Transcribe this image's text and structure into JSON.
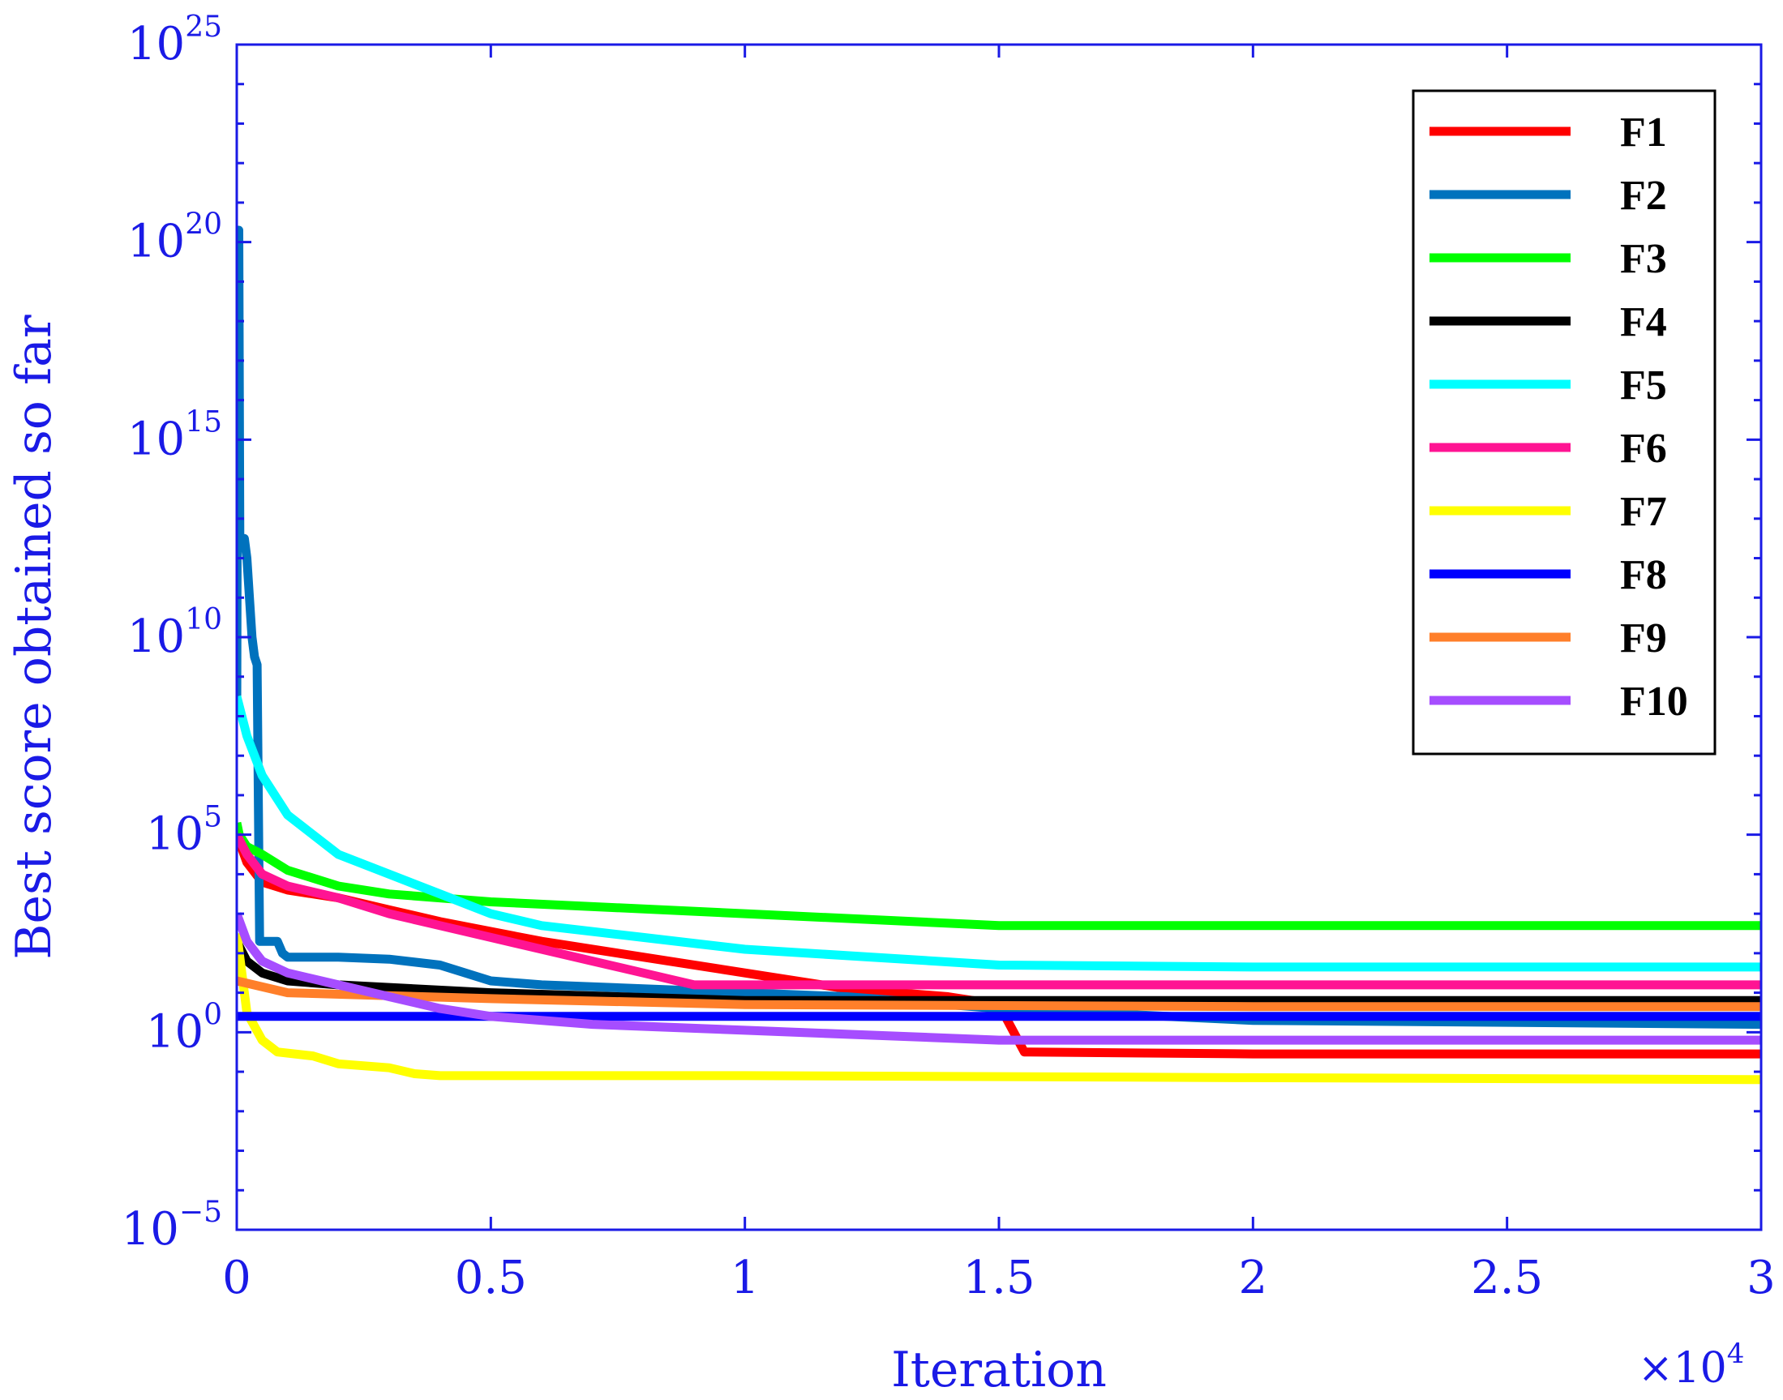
{
  "chart_data": {
    "type": "line",
    "title": "",
    "xlabel": "Iteration",
    "ylabel": "Best score obtained so far",
    "x_multiplier_label": {
      "base": "×10",
      "exp": "4"
    },
    "xlim": [
      0,
      3
    ],
    "ylim_log10": [
      -5,
      25
    ],
    "y_scale": "log",
    "grid": false,
    "legend_position": "top-right",
    "x_ticks": [
      {
        "value": 0,
        "label": "0"
      },
      {
        "value": 0.5,
        "label": "0.5"
      },
      {
        "value": 1,
        "label": "1"
      },
      {
        "value": 1.5,
        "label": "1.5"
      },
      {
        "value": 2,
        "label": "2"
      },
      {
        "value": 2.5,
        "label": "2.5"
      },
      {
        "value": 3,
        "label": "3"
      }
    ],
    "y_ticks": [
      {
        "value": -5,
        "base": "10",
        "exp": "−5"
      },
      {
        "value": 0,
        "base": "10",
        "exp": "0"
      },
      {
        "value": 5,
        "base": "10",
        "exp": "5"
      },
      {
        "value": 10,
        "base": "10",
        "exp": "10"
      },
      {
        "value": 15,
        "base": "10",
        "exp": "15"
      },
      {
        "value": 20,
        "base": "10",
        "exp": "20"
      },
      {
        "value": 25,
        "base": "10",
        "exp": "25"
      }
    ],
    "series": [
      {
        "name": "F1",
        "color": "#ff0000",
        "x": [
          0,
          0.02,
          0.05,
          0.1,
          0.2,
          0.3,
          0.4,
          0.6,
          0.8,
          1.0,
          1.2,
          1.4,
          1.5,
          1.55,
          2.0,
          3.0
        ],
        "log10_y": [
          5.0,
          4.3,
          3.8,
          3.6,
          3.4,
          3.1,
          2.8,
          2.3,
          1.9,
          1.5,
          1.1,
          0.9,
          0.7,
          -0.5,
          -0.55,
          -0.55
        ]
      },
      {
        "name": "F2",
        "color": "#0072bd",
        "x": [
          0,
          0.002,
          0.004,
          0.006,
          0.01,
          0.015,
          0.02,
          0.03,
          0.035,
          0.04,
          0.045,
          0.05,
          0.08,
          0.09,
          0.1,
          0.2,
          0.3,
          0.4,
          0.5,
          0.6,
          0.8,
          1.0,
          1.2,
          1.5,
          2.0,
          3.0
        ],
        "log10_y": [
          8.0,
          20.3,
          20.3,
          12.5,
          12.5,
          12.5,
          12.0,
          10.0,
          9.5,
          9.3,
          2.3,
          2.3,
          2.3,
          2.0,
          1.9,
          1.9,
          1.85,
          1.7,
          1.3,
          1.2,
          1.1,
          1.0,
          0.9,
          0.6,
          0.3,
          0.2
        ]
      },
      {
        "name": "F3",
        "color": "#00ff00",
        "x": [
          0,
          0.005,
          0.02,
          0.05,
          0.1,
          0.2,
          0.3,
          0.5,
          1.0,
          1.5,
          2.0,
          3.0
        ],
        "log10_y": [
          5.3,
          5.0,
          4.7,
          4.5,
          4.1,
          3.7,
          3.5,
          3.3,
          3.0,
          2.7,
          2.7,
          2.7
        ]
      },
      {
        "name": "F4",
        "color": "#000000",
        "x": [
          0,
          0.02,
          0.05,
          0.1,
          0.2,
          0.5,
          1.0,
          2.0,
          3.0
        ],
        "log10_y": [
          2.3,
          1.8,
          1.5,
          1.3,
          1.2,
          1.0,
          0.8,
          0.8,
          0.8
        ]
      },
      {
        "name": "F5",
        "color": "#00ffff",
        "x": [
          0,
          0.02,
          0.05,
          0.1,
          0.15,
          0.2,
          0.3,
          0.4,
          0.5,
          0.6,
          0.8,
          1.0,
          1.5,
          2.0,
          3.0
        ],
        "log10_y": [
          8.5,
          7.5,
          6.5,
          5.5,
          5.0,
          4.5,
          4.0,
          3.5,
          3.0,
          2.7,
          2.4,
          2.1,
          1.7,
          1.65,
          1.65
        ]
      },
      {
        "name": "F6",
        "color": "#ff1493",
        "x": [
          0,
          0.02,
          0.05,
          0.1,
          0.2,
          0.3,
          0.4,
          0.5,
          0.6,
          0.7,
          0.8,
          0.9,
          1.0,
          2.0,
          3.0
        ],
        "log10_y": [
          5.0,
          4.5,
          4.0,
          3.7,
          3.4,
          3.0,
          2.7,
          2.4,
          2.1,
          1.8,
          1.5,
          1.2,
          1.2,
          1.2,
          1.2
        ]
      },
      {
        "name": "F7",
        "color": "#ffff00",
        "x": [
          0,
          0.02,
          0.05,
          0.08,
          0.15,
          0.2,
          0.3,
          0.35,
          0.4,
          1.0,
          2.0,
          3.0
        ],
        "log10_y": [
          2.5,
          0.5,
          -0.2,
          -0.5,
          -0.6,
          -0.8,
          -0.9,
          -1.05,
          -1.1,
          -1.1,
          -1.15,
          -1.2
        ]
      },
      {
        "name": "F8",
        "color": "#0000ff",
        "x": [
          0,
          3.0
        ],
        "log10_y": [
          0.4,
          0.4
        ]
      },
      {
        "name": "F9",
        "color": "#ff7f2a",
        "x": [
          0,
          0.1,
          0.5,
          1.0,
          2.0,
          3.0
        ],
        "log10_y": [
          1.3,
          1.0,
          0.85,
          0.7,
          0.65,
          0.65
        ]
      },
      {
        "name": "F10",
        "color": "#a64dff",
        "x": [
          0,
          0.02,
          0.05,
          0.1,
          0.2,
          0.3,
          0.4,
          0.5,
          0.7,
          1.0,
          1.5,
          2.0,
          3.0
        ],
        "log10_y": [
          3.0,
          2.3,
          1.8,
          1.5,
          1.2,
          0.9,
          0.6,
          0.4,
          0.2,
          0.05,
          -0.2,
          -0.2,
          -0.2
        ]
      }
    ]
  }
}
